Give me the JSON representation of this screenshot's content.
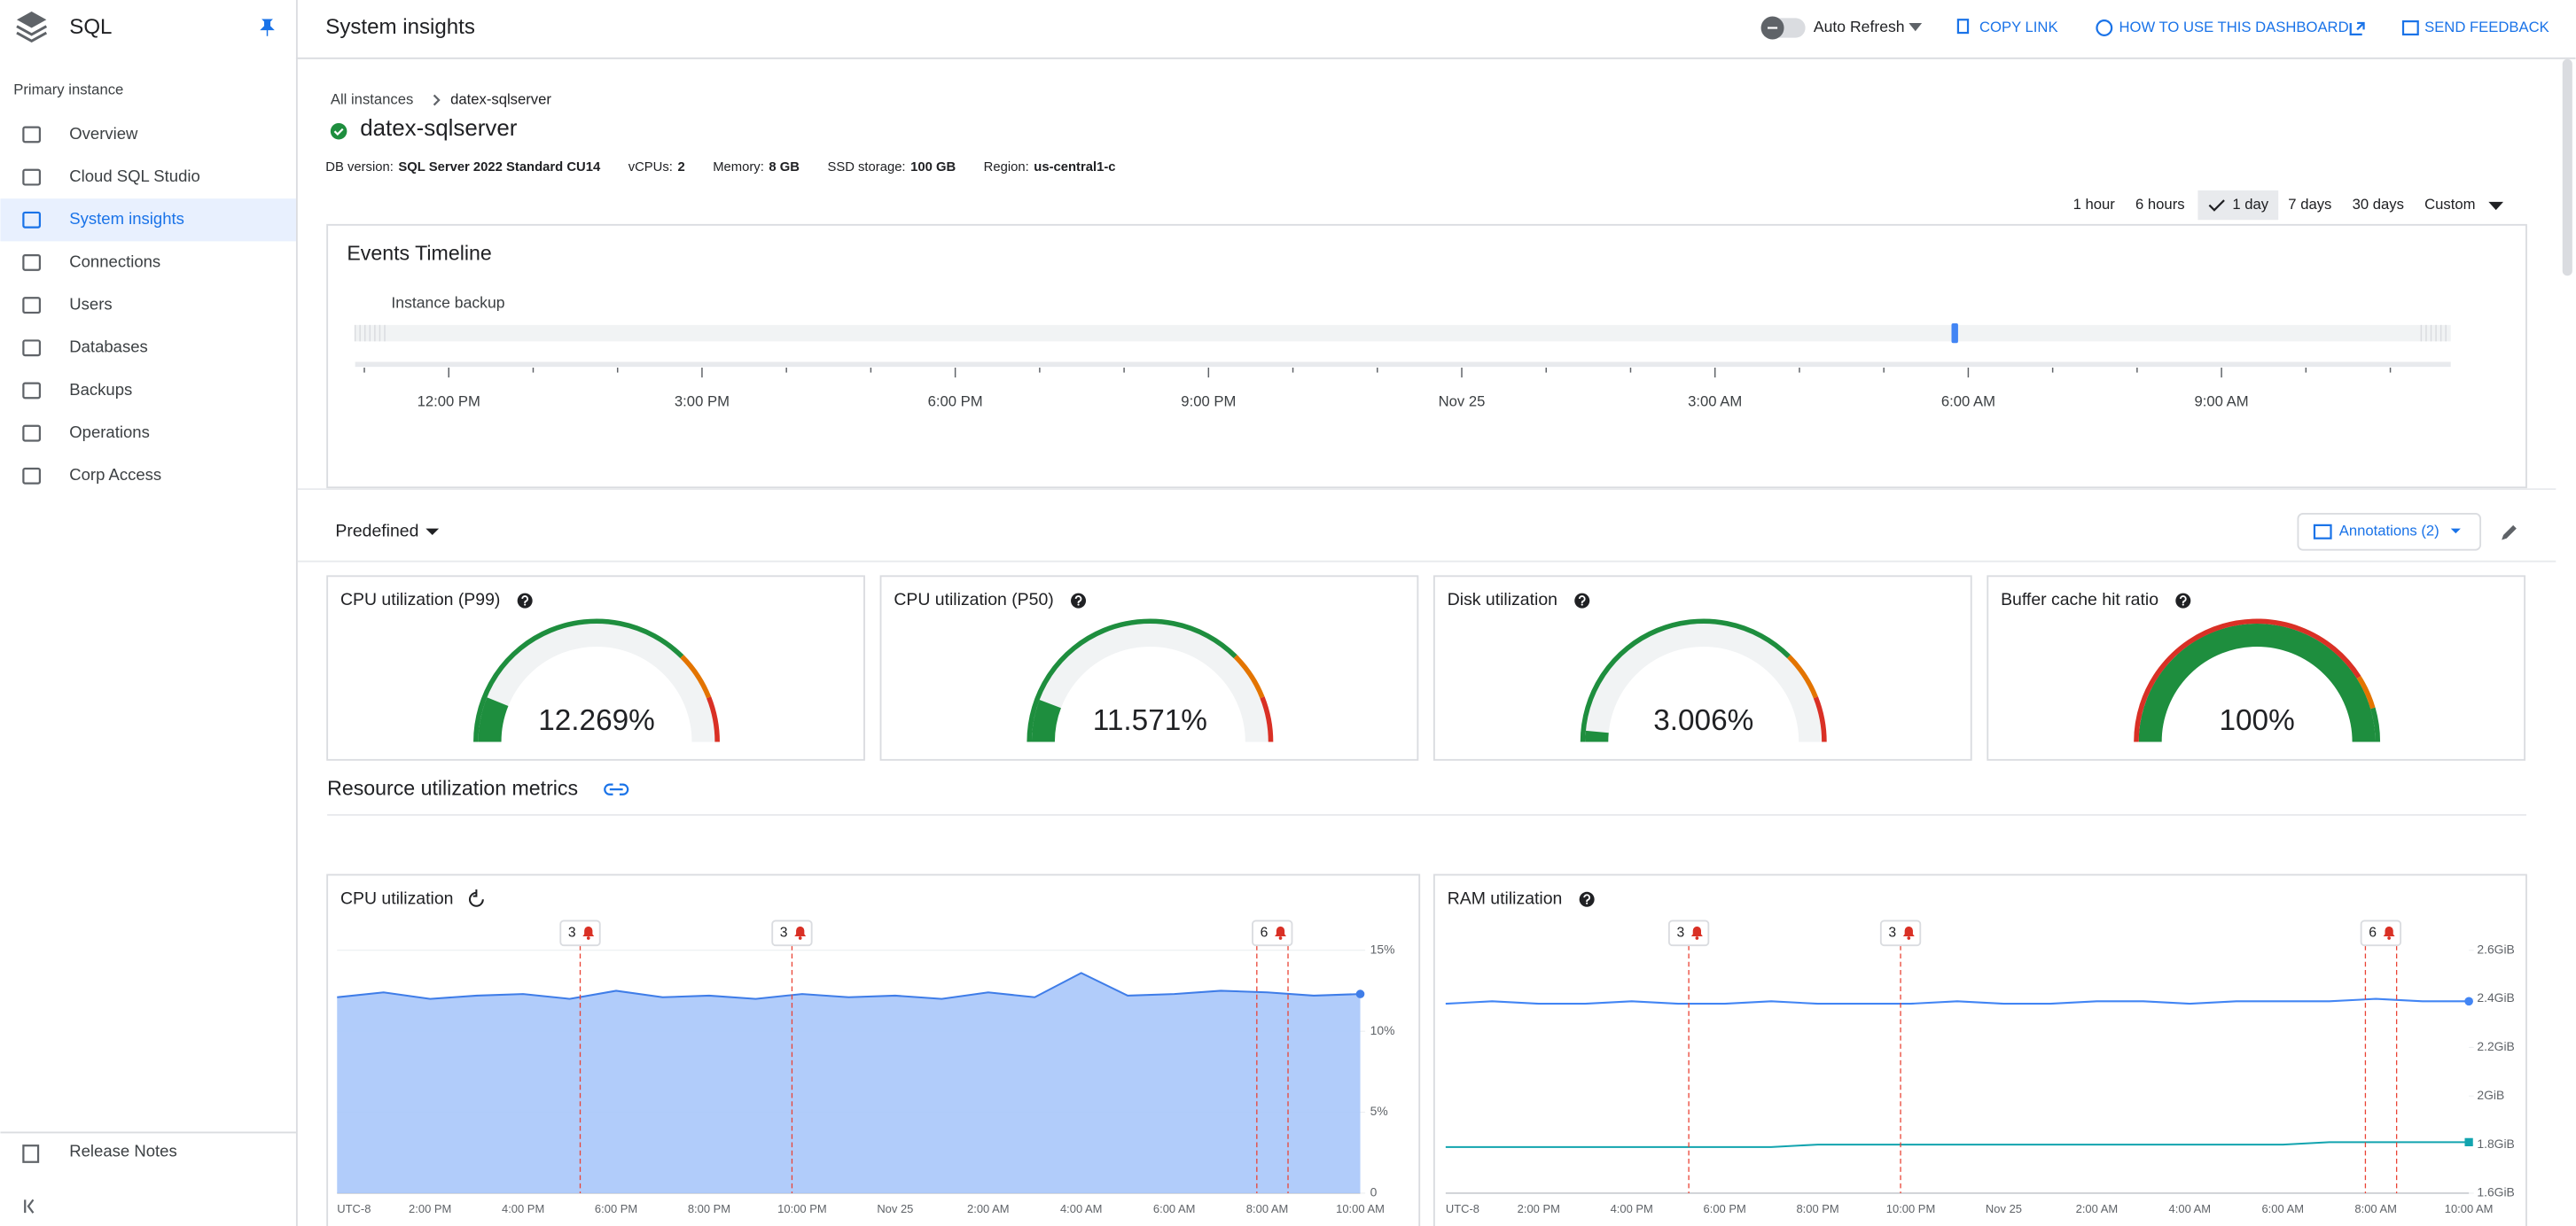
{
  "sidebar": {
    "product": "SQL",
    "section": "Primary instance",
    "items": [
      "Overview",
      "Cloud SQL Studio",
      "System insights",
      "Connections",
      "Users",
      "Databases",
      "Backups",
      "Operations",
      "Corp Access"
    ],
    "release_notes": "Release Notes"
  },
  "header": {
    "title": "System insights",
    "auto_refresh": "Auto Refresh",
    "copy_link": "COPY LINK",
    "how_to": "HOW TO USE THIS DASHBOARD",
    "feedback": "SEND FEEDBACK"
  },
  "breadcrumb": [
    "All instances",
    "datex-sqlserver"
  ],
  "instance": {
    "name": "datex-sqlserver",
    "details": [
      {
        "label": "DB version:",
        "value": "SQL Server 2022 Standard CU14"
      },
      {
        "label": "vCPUs:",
        "value": 2
      },
      {
        "label": "Memory:",
        "value": "8 GB"
      },
      {
        "label": "SSD storage:",
        "value": "100 GB"
      },
      {
        "label": "Region:",
        "value": "us-central1-c"
      }
    ]
  },
  "time_ranges": [
    "1 hour",
    "6 hours",
    "1 day",
    "7 days",
    "30 days",
    "Custom"
  ],
  "events_timeline": {
    "title": "Events Timeline",
    "row": "Instance backup",
    "ticks": [
      "12:00 PM",
      "3:00 PM",
      "6:00 PM",
      "9:00 PM",
      "Nov 25",
      "3:00 AM",
      "6:00 AM",
      "9:00 AM"
    ]
  },
  "predefined": "Predefined",
  "annotations_button": "Annotations (2)",
  "gauges": [
    {
      "title": "CPU utilization (P99)",
      "value": 12.269,
      "value_label": "12.269%"
    },
    {
      "title": "CPU utilization (P50)",
      "value": 11.571,
      "value_label": "11.571%"
    },
    {
      "title": "Disk utilization",
      "value": 3.006,
      "value_label": "3.006%"
    },
    {
      "title": "Buffer cache hit ratio",
      "value": 100,
      "value_label": "100%"
    }
  ],
  "section_title": "Resource utilization metrics",
  "chart_data": [
    {
      "type": "area",
      "title": "CPU utilization",
      "categories": [
        "UTC-8",
        null,
        "2:00 PM",
        null,
        "4:00 PM",
        null,
        "6:00 PM",
        null,
        "8:00 PM",
        null,
        "10:00 PM",
        null,
        "Nov 25",
        null,
        "2:00 AM",
        null,
        "4:00 AM",
        null,
        "6:00 AM",
        null,
        "8:00 AM",
        null,
        "10:00 AM"
      ],
      "series": [
        {
          "color": "#3f7de8",
          "values": [
            12.1,
            12.4,
            12.0,
            12.2,
            12.3,
            12.0,
            12.5,
            12.1,
            12.2,
            12.0,
            12.3,
            12.1,
            12.2,
            12.0,
            12.4,
            12.1,
            13.6,
            12.2,
            12.3,
            12.5,
            12.4,
            12.2,
            12.3
          ]
        }
      ],
      "ylim": [
        0,
        15
      ],
      "yticks": [
        0,
        {
          "value": 5,
          "label": "5%"
        },
        {
          "value": 10,
          "label": "10%"
        },
        {
          "value": 15,
          "label": "15%"
        }
      ],
      "annotations": [
        3,
        3,
        6
      ],
      "grid": true
    },
    {
      "type": "line",
      "title": "RAM utilization",
      "categories": [
        "UTC-8",
        null,
        "2:00 PM",
        null,
        "4:00 PM",
        null,
        "6:00 PM",
        null,
        "8:00 PM",
        null,
        "10:00 PM",
        null,
        "Nov 25",
        null,
        "2:00 AM",
        null,
        "4:00 AM",
        null,
        "6:00 AM",
        null,
        "8:00 AM",
        null,
        "10:00 AM"
      ],
      "series": [
        {
          "color": "#4285f4",
          "values": [
            2.38,
            2.39,
            2.38,
            2.38,
            2.39,
            2.38,
            2.38,
            2.39,
            2.38,
            2.38,
            2.38,
            2.39,
            2.38,
            2.38,
            2.39,
            2.39,
            2.38,
            2.39,
            2.39,
            2.39,
            2.4,
            2.39,
            2.39
          ]
        },
        {
          "color": "#12a4af",
          "values": [
            1.79,
            1.79,
            1.79,
            1.79,
            1.79,
            1.79,
            1.79,
            1.79,
            1.8,
            1.8,
            1.8,
            1.8,
            1.8,
            1.8,
            1.8,
            1.8,
            1.8,
            1.8,
            1.8,
            1.81,
            1.81,
            1.81,
            1.81
          ]
        }
      ],
      "ylim": [
        1.6,
        2.6
      ],
      "yticks": [
        {
          "value": 1.6,
          "label": "1.6GiB"
        },
        {
          "value": 1.8,
          "label": "1.8GiB"
        },
        {
          "value": 2,
          "label": "2GiB"
        },
        {
          "value": 2.2,
          "label": "2.2GiB"
        },
        {
          "value": 2.4,
          "label": "2.4GiB"
        },
        {
          "value": 2.6,
          "label": "2.6GiB"
        }
      ],
      "annotations": [
        3,
        3,
        6
      ],
      "grid": false
    }
  ]
}
